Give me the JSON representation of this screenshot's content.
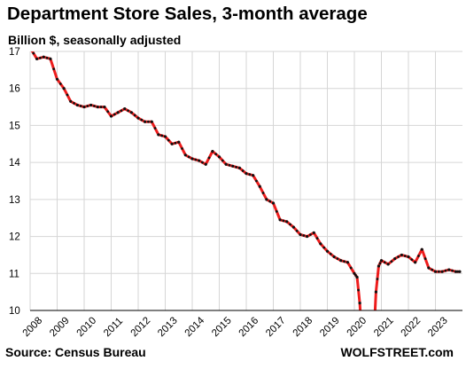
{
  "header": {
    "title": "Department Store Sales, 3-month average",
    "subtitle": "Billion $, seasonally adjusted"
  },
  "footer": {
    "source": "Source: Census Bureau",
    "brand": "WOLFSTREET.com"
  },
  "colors": {
    "line": "#ee1c1c",
    "markers": "#111111",
    "grid": "#d6d6d6",
    "axis": "#000000"
  },
  "chart_data": {
    "type": "line",
    "title": "Department Store Sales, 3-month average",
    "subtitle": "Billion $, seasonally adjusted",
    "xlabel": "",
    "ylabel": "",
    "ylim": [
      10,
      17
    ],
    "xlim": [
      2008,
      2024
    ],
    "grid": true,
    "legend": "none",
    "x_tick_labels": [
      "2008",
      "2009",
      "2010",
      "2011",
      "2012",
      "2013",
      "2014",
      "2015",
      "2016",
      "2017",
      "2018",
      "2019",
      "2020",
      "2021",
      "2022",
      "2023"
    ],
    "y_tick_labels": [
      "10",
      "11",
      "12",
      "13",
      "14",
      "15",
      "16",
      "17"
    ],
    "series": [
      {
        "x": [
          2008.0,
          2008.25,
          2008.5,
          2008.75,
          2009.0,
          2009.25,
          2009.5,
          2009.75,
          2010.0,
          2010.25,
          2010.5,
          2010.75,
          2011.0,
          2011.25,
          2011.5,
          2011.75,
          2012.0,
          2012.25,
          2012.5,
          2012.75,
          2013.0,
          2013.25,
          2013.5,
          2013.75,
          2014.0,
          2014.25,
          2014.5,
          2014.75,
          2015.0,
          2015.25,
          2015.5,
          2015.75,
          2016.0,
          2016.25,
          2016.5,
          2016.75,
          2017.0,
          2017.25,
          2017.5,
          2017.75,
          2018.0,
          2018.25,
          2018.5,
          2018.75,
          2019.0,
          2019.25,
          2019.5,
          2019.75,
          2020.0,
          2020.1,
          2020.2,
          2020.3,
          2020.7,
          2020.8,
          2020.9,
          2021.0,
          2021.25,
          2021.5,
          2021.75,
          2022.0,
          2022.25,
          2022.5,
          2022.75,
          2023.0,
          2023.25,
          2023.5,
          2023.75,
          2023.9
        ],
        "values": [
          17.1,
          16.8,
          16.85,
          16.8,
          16.25,
          16.0,
          15.65,
          15.55,
          15.5,
          15.55,
          15.5,
          15.5,
          15.25,
          15.35,
          15.45,
          15.35,
          15.2,
          15.1,
          15.1,
          14.75,
          14.7,
          14.5,
          14.55,
          14.2,
          14.1,
          14.05,
          13.95,
          14.3,
          14.15,
          13.95,
          13.9,
          13.85,
          13.7,
          13.65,
          13.35,
          13.0,
          12.9,
          12.45,
          12.4,
          12.25,
          12.05,
          12.0,
          12.1,
          11.8,
          11.6,
          11.45,
          11.35,
          11.3,
          11.0,
          10.9,
          10.2,
          9.0,
          9.0,
          10.5,
          11.2,
          11.35,
          11.25,
          11.4,
          11.5,
          11.45,
          11.3,
          11.65,
          11.15,
          11.05,
          11.05,
          11.1,
          11.05,
          11.05
        ]
      }
    ]
  }
}
